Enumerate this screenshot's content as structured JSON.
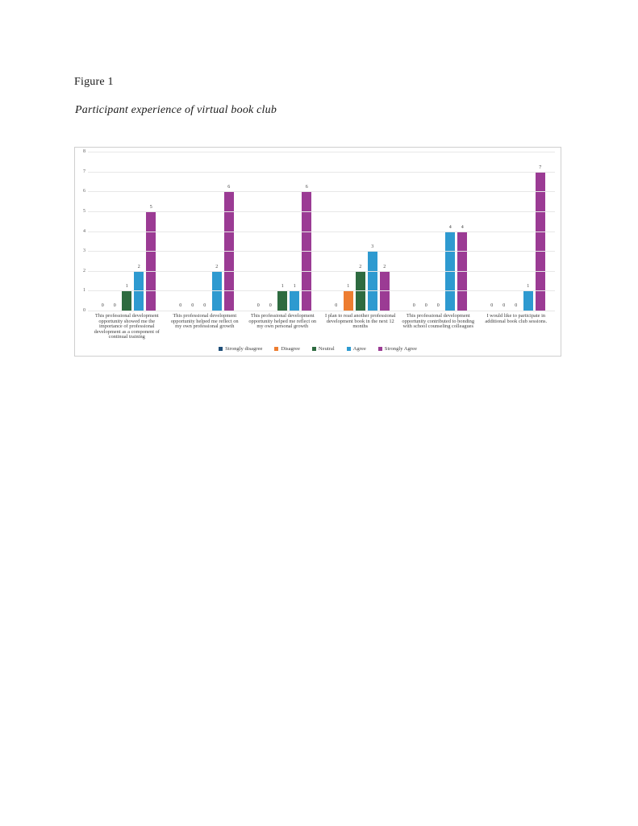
{
  "figure": {
    "label": "Figure 1",
    "caption": "Participant experience of virtual book club"
  },
  "chart_data": {
    "type": "bar",
    "title": "",
    "xlabel": "",
    "ylabel": "",
    "ylim": [
      0,
      8
    ],
    "ytick_step": 1,
    "grid": true,
    "legend_position": "bottom",
    "data_labels": true,
    "categories": [
      "This professional development opportunity showed me the importance of professional development as a component of continual training",
      "This professional development opportunity helped me reflect on my own professional growth",
      "This professional development opportunity helped me reflect on my own personal growth",
      "I plan to read another professional development book in the next 12 months",
      "This professional development opportunity contributed to bonding with school counseling colleagues",
      "I would like to participate in additional book club sessions."
    ],
    "series": [
      {
        "name": "Strongly disagree",
        "color": "#1F4E79",
        "values": [
          0,
          0,
          0,
          0,
          0,
          0
        ]
      },
      {
        "name": "Disagree",
        "color": "#ED7D31",
        "values": [
          0,
          0,
          0,
          1,
          0,
          0
        ]
      },
      {
        "name": "Neutral",
        "color": "#2E6B40",
        "values": [
          1,
          0,
          1,
          2,
          0,
          0
        ]
      },
      {
        "name": "Agree",
        "color": "#2E9AD0",
        "values": [
          2,
          2,
          1,
          3,
          4,
          1
        ]
      },
      {
        "name": "Strongly Agree",
        "color": "#9B3B94",
        "values": [
          5,
          6,
          6,
          2,
          4,
          7
        ]
      }
    ],
    "style": {
      "grid_color": "#e7e7e7",
      "tick_label_color": "#595959",
      "data_label_color": "#3f3f3f",
      "chart_border_color": "#cfcfcf"
    }
  }
}
